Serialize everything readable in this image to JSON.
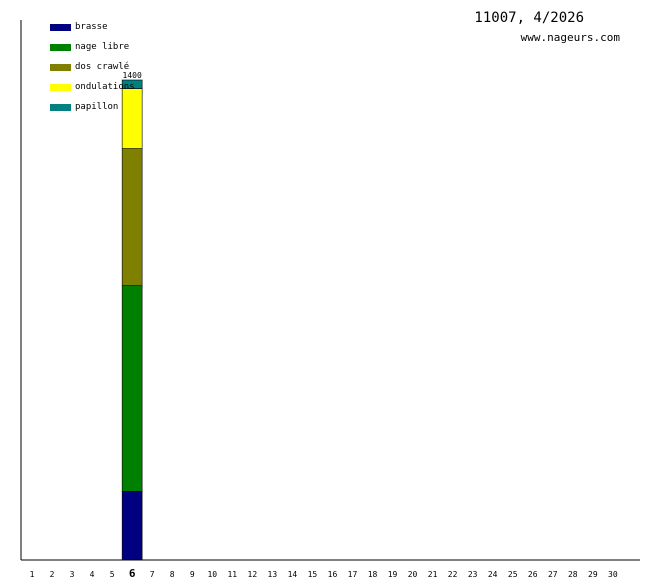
{
  "header": {
    "title": "11007, 4/2026",
    "site": "www.nageurs.com"
  },
  "colors": {
    "axis": "#000000",
    "background": "#ffffff",
    "segment_outline": "#000000"
  },
  "legend": [
    {
      "label": "brasse",
      "color": "#000080"
    },
    {
      "label": "nage libre",
      "color": "#008000"
    },
    {
      "label": "dos crawlé",
      "color": "#808000"
    },
    {
      "label": "ondulations",
      "color": "#ffff00"
    },
    {
      "label": "papillon",
      "color": "#008080"
    }
  ],
  "chart_data": {
    "type": "bar",
    "stacked": true,
    "title": "11007, 4/2026",
    "xlabel": "",
    "ylabel": "",
    "categories": [
      "1",
      "2",
      "3",
      "4",
      "5",
      "6",
      "7",
      "8",
      "9",
      "10",
      "11",
      "12",
      "13",
      "14",
      "15",
      "16",
      "17",
      "18",
      "19",
      "20",
      "21",
      "22",
      "23",
      "24",
      "25",
      "26",
      "27",
      "28",
      "29",
      "30"
    ],
    "highlighted_category": "6",
    "ylim": [
      0,
      1400
    ],
    "grid": false,
    "legend_position": "top-left",
    "series": [
      {
        "name": "brasse",
        "color": "#000080",
        "values": [
          0,
          0,
          0,
          0,
          0,
          200,
          0,
          0,
          0,
          0,
          0,
          0,
          0,
          0,
          0,
          0,
          0,
          0,
          0,
          0,
          0,
          0,
          0,
          0,
          0,
          0,
          0,
          0,
          0,
          0
        ]
      },
      {
        "name": "nage libre",
        "color": "#008000",
        "values": [
          0,
          0,
          0,
          0,
          0,
          600,
          0,
          0,
          0,
          0,
          0,
          0,
          0,
          0,
          0,
          0,
          0,
          0,
          0,
          0,
          0,
          0,
          0,
          0,
          0,
          0,
          0,
          0,
          0,
          0
        ]
      },
      {
        "name": "dos crawlé",
        "color": "#808000",
        "values": [
          0,
          0,
          0,
          0,
          0,
          400,
          0,
          0,
          0,
          0,
          0,
          0,
          0,
          0,
          0,
          0,
          0,
          0,
          0,
          0,
          0,
          0,
          0,
          0,
          0,
          0,
          0,
          0,
          0,
          0
        ]
      },
      {
        "name": "ondulations",
        "color": "#ffff00",
        "values": [
          0,
          0,
          0,
          0,
          0,
          175,
          0,
          0,
          0,
          0,
          0,
          0,
          0,
          0,
          0,
          0,
          0,
          0,
          0,
          0,
          0,
          0,
          0,
          0,
          0,
          0,
          0,
          0,
          0,
          0
        ]
      },
      {
        "name": "papillon",
        "color": "#008080",
        "values": [
          0,
          0,
          0,
          0,
          0,
          25,
          0,
          0,
          0,
          0,
          0,
          0,
          0,
          0,
          0,
          0,
          0,
          0,
          0,
          0,
          0,
          0,
          0,
          0,
          0,
          0,
          0,
          0,
          0,
          0
        ]
      }
    ],
    "totals": [
      {
        "category": "6",
        "label": "1400"
      }
    ]
  }
}
